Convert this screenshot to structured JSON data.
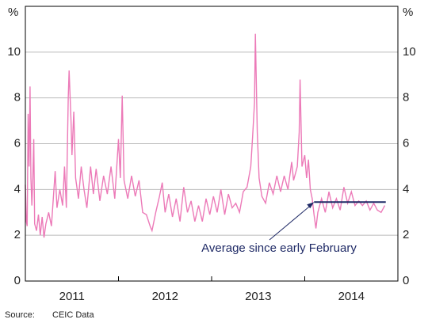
{
  "chart_data": {
    "type": "line",
    "y_unit": "%",
    "x": [
      2011.0,
      2011.01,
      2011.02,
      2011.03,
      2011.04,
      2011.05,
      2011.06,
      2011.07,
      2011.08,
      2011.09,
      2011.1,
      2011.12,
      2011.14,
      2011.16,
      2011.18,
      2011.2,
      2011.22,
      2011.25,
      2011.28,
      2011.32,
      2011.34,
      2011.37,
      2011.4,
      2011.42,
      2011.44,
      2011.46,
      2011.47,
      2011.49,
      2011.5,
      2011.52,
      2011.54,
      2011.57,
      2011.6,
      2011.63,
      2011.66,
      2011.7,
      2011.73,
      2011.76,
      2011.8,
      2011.84,
      2011.88,
      2011.92,
      2011.96,
      2012.0,
      2012.02,
      2012.04,
      2012.06,
      2012.1,
      2012.14,
      2012.18,
      2012.22,
      2012.26,
      2012.3,
      2012.34,
      2012.36,
      2012.4,
      2012.44,
      2012.47,
      2012.5,
      2012.54,
      2012.58,
      2012.62,
      2012.66,
      2012.7,
      2012.74,
      2012.78,
      2012.82,
      2012.86,
      2012.9,
      2012.94,
      2012.98,
      2013.02,
      2013.06,
      2013.1,
      2013.14,
      2013.18,
      2013.22,
      2013.26,
      2013.3,
      2013.34,
      2013.38,
      2013.42,
      2013.44,
      2013.46,
      2013.47,
      2013.49,
      2013.51,
      2013.54,
      2013.58,
      2013.62,
      2013.66,
      2013.7,
      2013.74,
      2013.78,
      2013.82,
      2013.86,
      2013.88,
      2013.92,
      2013.94,
      2013.95,
      2013.97,
      2014.0,
      2014.02,
      2014.04,
      2014.06,
      2014.08,
      2014.1,
      2014.12,
      2014.14,
      2014.18,
      2014.22,
      2014.26,
      2014.3,
      2014.34,
      2014.38,
      2014.42,
      2014.46,
      2014.5,
      2014.54,
      2014.58,
      2014.62,
      2014.66,
      2014.7,
      2014.74,
      2014.78,
      2014.82,
      2014.86
    ],
    "series": [
      {
        "color": "#ec7ab8",
        "values": [
          4.2,
          2.6,
          2.4,
          7.3,
          5.0,
          8.5,
          4.5,
          3.3,
          4.5,
          6.2,
          2.5,
          2.2,
          2.9,
          2.0,
          2.8,
          1.9,
          2.5,
          3.0,
          2.4,
          4.8,
          3.2,
          4.0,
          3.3,
          5.0,
          3.2,
          8.0,
          9.2,
          7.0,
          5.5,
          7.4,
          4.5,
          3.6,
          5.0,
          4.0,
          3.2,
          5.0,
          3.8,
          4.9,
          3.5,
          4.6,
          3.8,
          5.0,
          3.6,
          6.2,
          4.5,
          8.1,
          4.4,
          3.6,
          4.6,
          3.7,
          4.4,
          3.0,
          2.9,
          2.4,
          2.2,
          3.0,
          3.7,
          4.3,
          3.0,
          3.8,
          2.8,
          3.6,
          2.6,
          4.1,
          3.0,
          3.5,
          2.6,
          3.3,
          2.6,
          3.6,
          2.9,
          3.7,
          3.0,
          4.0,
          2.9,
          3.8,
          3.2,
          3.4,
          3.0,
          3.9,
          4.1,
          5.0,
          6.3,
          7.8,
          10.8,
          6.5,
          4.5,
          3.7,
          3.4,
          4.3,
          3.8,
          4.6,
          3.9,
          4.6,
          4.0,
          5.2,
          4.4,
          5.0,
          6.5,
          8.8,
          5.0,
          5.5,
          4.5,
          5.3,
          4.0,
          3.6,
          2.9,
          2.3,
          3.0,
          3.6,
          3.0,
          3.9,
          3.2,
          3.6,
          3.1,
          4.1,
          3.4,
          3.9,
          3.3,
          3.5,
          3.3,
          3.5,
          3.1,
          3.4,
          3.1,
          3.0,
          3.3
        ]
      }
    ],
    "xlim": [
      2011,
      2015
    ],
    "xticks": [
      {
        "value": 2011,
        "label": "2011"
      },
      {
        "value": 2012,
        "label": "2012"
      },
      {
        "value": 2013,
        "label": "2013"
      },
      {
        "value": 2014,
        "label": "2014"
      }
    ],
    "ylim": [
      0,
      12
    ],
    "yticks": [
      0,
      2,
      4,
      6,
      8,
      10
    ],
    "grid": true,
    "annotation": {
      "text": "Average since early February",
      "value": 3.45,
      "x_start": 2014.1,
      "x_end": 2014.87,
      "color": "#1f2a66"
    },
    "source_label": "Source:",
    "source": "CEIC Data"
  }
}
